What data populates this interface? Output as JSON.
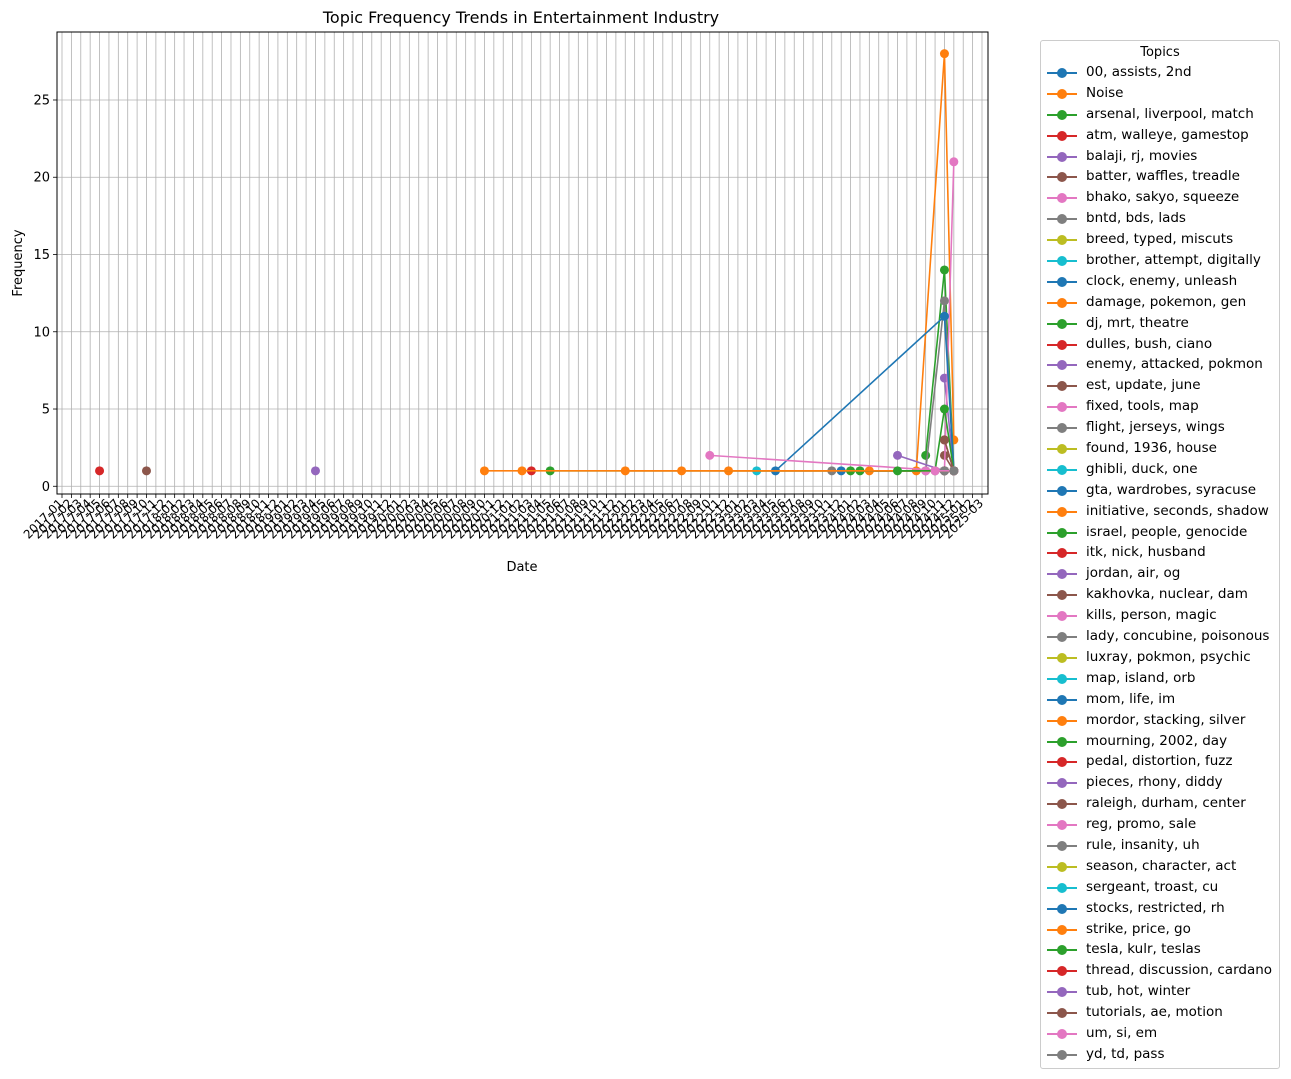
{
  "chart_data": {
    "type": "line",
    "title": "Topic Frequency Trends in Entertainment Industry",
    "xlabel": "Date",
    "ylabel": "Frequency",
    "ylim": [
      -0.5,
      29.4
    ],
    "yticks": [
      0,
      5,
      10,
      15,
      20,
      25
    ],
    "grid": true,
    "legend_title": "Topics",
    "legend_position": "outside-right",
    "x_ticks": [
      "2017-01",
      "2017-02",
      "2017-03",
      "2017-04",
      "2017-05",
      "2017-06",
      "2017-07",
      "2017-08",
      "2017-09",
      "2017-10",
      "2017-11",
      "2017-12",
      "2018-01",
      "2018-02",
      "2018-03",
      "2018-04",
      "2018-05",
      "2018-06",
      "2018-07",
      "2018-08",
      "2018-09",
      "2018-10",
      "2018-11",
      "2018-12",
      "2019-01",
      "2019-02",
      "2019-03",
      "2019-04",
      "2019-05",
      "2019-06",
      "2019-07",
      "2019-08",
      "2019-09",
      "2019-10",
      "2019-11",
      "2019-12",
      "2020-01",
      "2020-02",
      "2020-03",
      "2020-04",
      "2020-05",
      "2020-06",
      "2020-07",
      "2020-08",
      "2020-09",
      "2020-10",
      "2020-11",
      "2020-12",
      "2021-01",
      "2021-02",
      "2021-03",
      "2021-04",
      "2021-05",
      "2021-06",
      "2021-07",
      "2021-08",
      "2021-09",
      "2021-10",
      "2021-11",
      "2021-12",
      "2022-01",
      "2022-02",
      "2022-03",
      "2022-04",
      "2022-05",
      "2022-06",
      "2022-07",
      "2022-08",
      "2022-09",
      "2022-10",
      "2022-11",
      "2022-12",
      "2023-01",
      "2023-02",
      "2023-03",
      "2023-04",
      "2023-05",
      "2023-06",
      "2023-07",
      "2023-08",
      "2023-09",
      "2023-10",
      "2023-11",
      "2023-12",
      "2024-01",
      "2024-02",
      "2024-03",
      "2024-04",
      "2024-05",
      "2024-06",
      "2024-07",
      "2024-08",
      "2024-09",
      "2024-10",
      "2024-11",
      "2024-12",
      "2025-01",
      "2025-02",
      "2025-03"
    ],
    "colors": [
      "#1f77b4",
      "#ff7f0e",
      "#2ca02c",
      "#d62728",
      "#9467bd",
      "#8c564b",
      "#e377c2",
      "#7f7f7f",
      "#bcbd22",
      "#17becf"
    ],
    "series": [
      {
        "name": "00, assists, 2nd",
        "points": [
          [
            "2024-11",
            1
          ]
        ]
      },
      {
        "name": "Noise",
        "points": [
          [
            "2024-08",
            1
          ],
          [
            "2024-11",
            28
          ],
          [
            "2024-12",
            3
          ]
        ]
      },
      {
        "name": "arsenal, liverpool, match",
        "points": [
          [
            "2024-09",
            2
          ],
          [
            "2024-11",
            14
          ],
          [
            "2024-12",
            1
          ]
        ]
      },
      {
        "name": "atm, walleye, gamestop",
        "points": [
          [
            "2024-11",
            3
          ],
          [
            "2024-12",
            1
          ]
        ]
      },
      {
        "name": "balaji, rj, movies",
        "points": [
          [
            "2024-11",
            7
          ],
          [
            "2024-12",
            1
          ]
        ]
      },
      {
        "name": "batter, waffles, treadle",
        "points": [
          [
            "2024-11",
            2
          ],
          [
            "2024-12",
            1
          ]
        ]
      },
      {
        "name": "bhako, sakyo, squeeze",
        "points": [
          [
            "2024-11",
            1
          ],
          [
            "2024-12",
            21
          ]
        ]
      },
      {
        "name": "bntd, bds, lads",
        "points": [
          [
            "2024-09",
            1
          ],
          [
            "2024-11",
            12
          ],
          [
            "2024-12",
            1
          ]
        ]
      },
      {
        "name": "breed, typed, miscuts",
        "points": [
          [
            "2024-12",
            1
          ]
        ]
      },
      {
        "name": "brother, attempt, digitally",
        "points": [
          [
            "2023-03",
            1
          ],
          [
            "2024-11",
            1
          ]
        ]
      },
      {
        "name": "clock, enemy, unleash",
        "points": [
          [
            "2023-05",
            1
          ],
          [
            "2024-11",
            11
          ],
          [
            "2024-12",
            1
          ]
        ]
      },
      {
        "name": "damage, pokemon, gen",
        "points": [
          [
            "2024-03",
            1
          ],
          [
            "2024-11",
            1
          ]
        ]
      },
      {
        "name": "dj, mrt, theatre",
        "points": [
          [
            "2024-02",
            1
          ],
          [
            "2024-10",
            1
          ],
          [
            "2024-11",
            5
          ],
          [
            "2024-12",
            1
          ]
        ]
      },
      {
        "name": "dulles, bush, ciano",
        "points": [
          [
            "2021-03",
            1
          ]
        ]
      },
      {
        "name": "enemy, attacked, pokmon",
        "points": [
          [
            "2024-06",
            2
          ],
          [
            "2024-11",
            1
          ]
        ]
      },
      {
        "name": "est, update, june",
        "points": [
          [
            "2024-11",
            1
          ],
          [
            "2024-12",
            1
          ]
        ]
      },
      {
        "name": "fixed, tools, map",
        "points": [
          [
            "2022-10",
            2
          ],
          [
            "2024-11",
            1
          ]
        ]
      },
      {
        "name": "flight, jerseys, wings",
        "points": [
          [
            "2024-11",
            1
          ]
        ]
      },
      {
        "name": "found, 1936, house",
        "points": [
          [
            "2024-12",
            1
          ]
        ]
      },
      {
        "name": "ghibli, duck, one",
        "points": [
          [
            "2024-12",
            1
          ]
        ]
      },
      {
        "name": "gta, wardrobes, syracuse",
        "points": [
          [
            "2024-12",
            1
          ]
        ]
      },
      {
        "name": "initiative, seconds, shadow",
        "points": [
          [
            "2022-12",
            1
          ],
          [
            "2024-12",
            1
          ]
        ]
      },
      {
        "name": "israel, people, genocide",
        "points": [
          [
            "2021-05",
            1
          ],
          [
            "2024-12",
            1
          ]
        ]
      },
      {
        "name": "itk, nick, husband",
        "points": [
          [
            "2024-11",
            1
          ]
        ]
      },
      {
        "name": "jordan, air, og",
        "points": [
          [
            "2019-04",
            1
          ]
        ]
      },
      {
        "name": "kakhovka, nuclear, dam",
        "points": [
          [
            "2017-10",
            1
          ]
        ]
      },
      {
        "name": "kills, person, magic",
        "points": [
          [
            "2024-10",
            1
          ]
        ]
      },
      {
        "name": "lady, concubine, poisonous",
        "points": [
          [
            "2023-11",
            1
          ],
          [
            "2024-11",
            1
          ]
        ]
      },
      {
        "name": "luxray, pokmon, psychic",
        "points": [
          [
            "2024-11",
            1
          ]
        ]
      },
      {
        "name": "map, island, orb",
        "points": [
          [
            "2024-12",
            1
          ]
        ]
      },
      {
        "name": "mom, life, im",
        "points": [
          [
            "2023-12",
            1
          ],
          [
            "2024-12",
            1
          ]
        ]
      },
      {
        "name": "mordor, stacking, silver",
        "points": [
          [
            "2020-10",
            1
          ],
          [
            "2021-02",
            1
          ],
          [
            "2022-07",
            1
          ],
          [
            "2024-12",
            1
          ]
        ]
      },
      {
        "name": "mourning, 2002, day",
        "points": [
          [
            "2024-01",
            1
          ],
          [
            "2024-12",
            1
          ]
        ]
      },
      {
        "name": "pedal, distortion, fuzz",
        "points": [
          [
            "2017-05",
            1
          ]
        ]
      },
      {
        "name": "pieces, rhony, diddy",
        "points": [
          [
            "2024-11",
            1
          ]
        ]
      },
      {
        "name": "raleigh, durham, center",
        "points": [
          [
            "2024-11",
            3
          ],
          [
            "2024-12",
            1
          ]
        ]
      },
      {
        "name": "reg, promo, sale",
        "points": [
          [
            "2024-09",
            1
          ]
        ]
      },
      {
        "name": "rule, insanity, uh",
        "points": [
          [
            "2024-11",
            1
          ]
        ]
      },
      {
        "name": "season, character, act",
        "points": [
          [
            "2024-12",
            1
          ]
        ]
      },
      {
        "name": "sergeant, troast, cu",
        "points": [
          [
            "2024-12",
            1
          ]
        ]
      },
      {
        "name": "stocks, restricted, rh",
        "points": [
          [
            "2024-12",
            1
          ]
        ]
      },
      {
        "name": "strike, price, go",
        "points": [
          [
            "2022-01",
            1
          ],
          [
            "2024-12",
            1
          ]
        ]
      },
      {
        "name": "tesla, kulr, teslas",
        "points": [
          [
            "2024-06",
            1
          ],
          [
            "2024-12",
            1
          ]
        ]
      },
      {
        "name": "thread, discussion, cardano",
        "points": [
          [
            "2024-12",
            1
          ]
        ]
      },
      {
        "name": "tub, hot, winter",
        "points": [
          [
            "2024-12",
            1
          ]
        ]
      },
      {
        "name": "tutorials, ae, motion",
        "points": [
          [
            "2024-12",
            1
          ]
        ]
      },
      {
        "name": "um, si, em",
        "points": [
          [
            "2024-10",
            1
          ],
          [
            "2024-12",
            1
          ]
        ]
      },
      {
        "name": "yd, td, pass",
        "points": [
          [
            "2024-12",
            1
          ]
        ]
      }
    ]
  }
}
